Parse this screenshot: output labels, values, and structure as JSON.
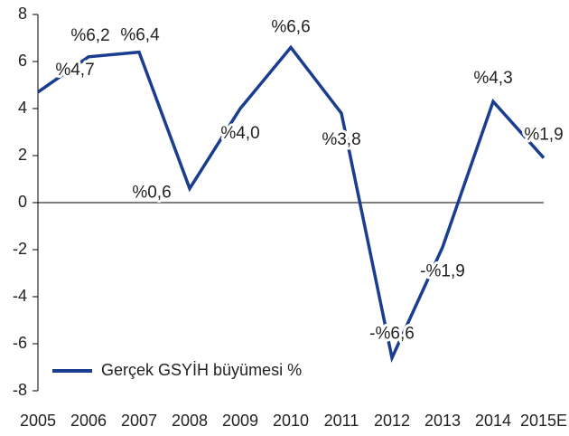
{
  "chart_data": {
    "type": "line",
    "categories": [
      "2005",
      "2006",
      "2007",
      "2008",
      "2009",
      "2010",
      "2011",
      "2012",
      "2013",
      "2014",
      "2015E"
    ],
    "series": [
      {
        "name": "Gerçek GSYİH büyümesi %",
        "color": "#1a3d8f",
        "values": [
          4.7,
          6.2,
          6.4,
          0.6,
          4.0,
          6.6,
          3.8,
          -6.6,
          -1.9,
          4.3,
          1.9
        ],
        "value_labels": [
          "%4,7",
          "%6,2",
          "%6,4",
          "%0,6",
          "%4,0",
          "%6,6",
          "%3,8",
          "-%6,6",
          "-%1,9",
          "%4,3",
          "%1,9"
        ]
      }
    ],
    "ylim": [
      -8,
      8
    ],
    "yticks": [
      -8,
      -6,
      -4,
      -2,
      0,
      2,
      4,
      6,
      8
    ],
    "legend": "lower left"
  }
}
